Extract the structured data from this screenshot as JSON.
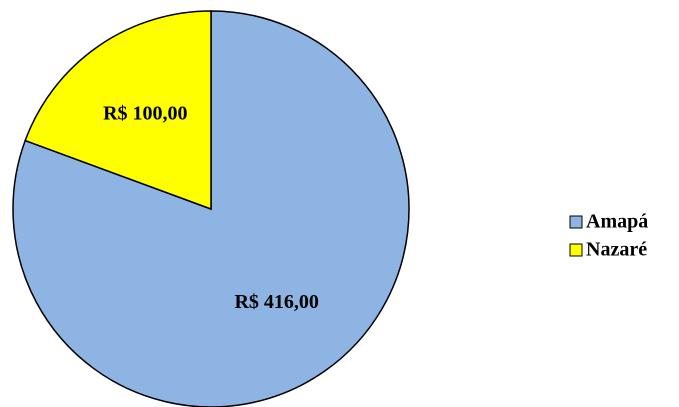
{
  "chart_data": {
    "type": "pie",
    "categories": [
      "Amapá",
      "Nazaré"
    ],
    "values": [
      416,
      100
    ],
    "value_labels": [
      "R$ 416,00",
      "R$ 100,00"
    ],
    "colors": [
      "#8eb4e3",
      "#ffff00"
    ],
    "legend": "right"
  }
}
